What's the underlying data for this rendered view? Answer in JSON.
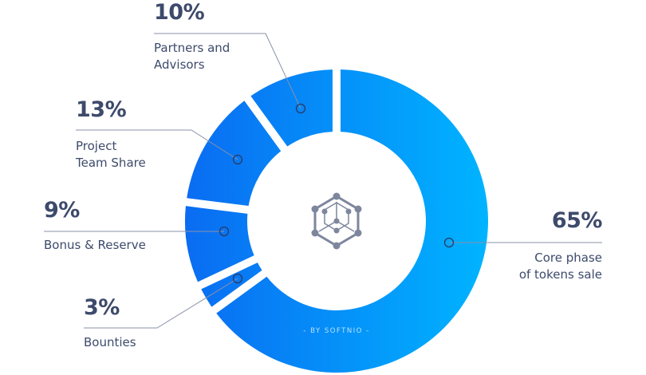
{
  "chart_data": {
    "type": "pie",
    "donut": true,
    "slices": [
      {
        "label": "Core phase\nof tokens sale",
        "value": 65,
        "value_label": "65%"
      },
      {
        "label": "Bounties",
        "value": 3,
        "value_label": "3%"
      },
      {
        "label": "Bonus & Reserve",
        "value": 9,
        "value_label": "9%"
      },
      {
        "label": "Project\nTeam Share",
        "value": 13,
        "value_label": "13%"
      },
      {
        "label": "Partners and\nAdvisors",
        "value": 10,
        "value_label": "10%"
      }
    ],
    "direction": "clockwise from top",
    "colors": {
      "gradient_start": "#0a6cf2",
      "gradient_end": "#00b4ff",
      "text": "#3d4a6b",
      "leader": "#8a91a8",
      "icon": "#7e869e"
    }
  },
  "center_icon": "hexagon-cube-network-icon",
  "watermark": "- BY SOFTNIO -"
}
